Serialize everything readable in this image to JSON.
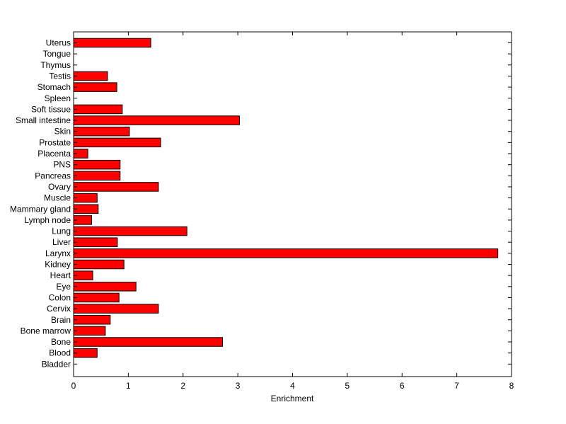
{
  "chart_data": {
    "type": "bar",
    "orientation": "horizontal",
    "xlabel": "Enrichment",
    "ylabel": "",
    "title": "",
    "xlim": [
      0,
      8
    ],
    "xticks": [
      0,
      1,
      2,
      3,
      4,
      5,
      6,
      7,
      8
    ],
    "grid": false,
    "bar_color": "#ff0000",
    "bar_edge_color": "#000000",
    "categories": [
      "Uterus",
      "Tongue",
      "Thymus",
      "Testis",
      "Stomach",
      "Spleen",
      "Soft tissue",
      "Small intestine",
      "Skin",
      "Prostate",
      "Placenta",
      "PNS",
      "Pancreas",
      "Ovary",
      "Muscle",
      "Mammary gland",
      "Lymph node",
      "Lung",
      "Liver",
      "Larynx",
      "Kidney",
      "Heart",
      "Eye",
      "Colon",
      "Cervix",
      "Brain",
      "Bone marrow",
      "Bone",
      "Blood",
      "Bladder"
    ],
    "values": [
      1.41,
      0,
      0,
      0.62,
      0.79,
      0,
      0.89,
      3.03,
      1.02,
      1.59,
      0.26,
      0.85,
      0.85,
      1.55,
      0.43,
      0.45,
      0.33,
      2.07,
      0.8,
      7.75,
      0.92,
      0.35,
      1.14,
      0.83,
      1.55,
      0.67,
      0.58,
      2.72,
      0.43,
      0
    ]
  }
}
